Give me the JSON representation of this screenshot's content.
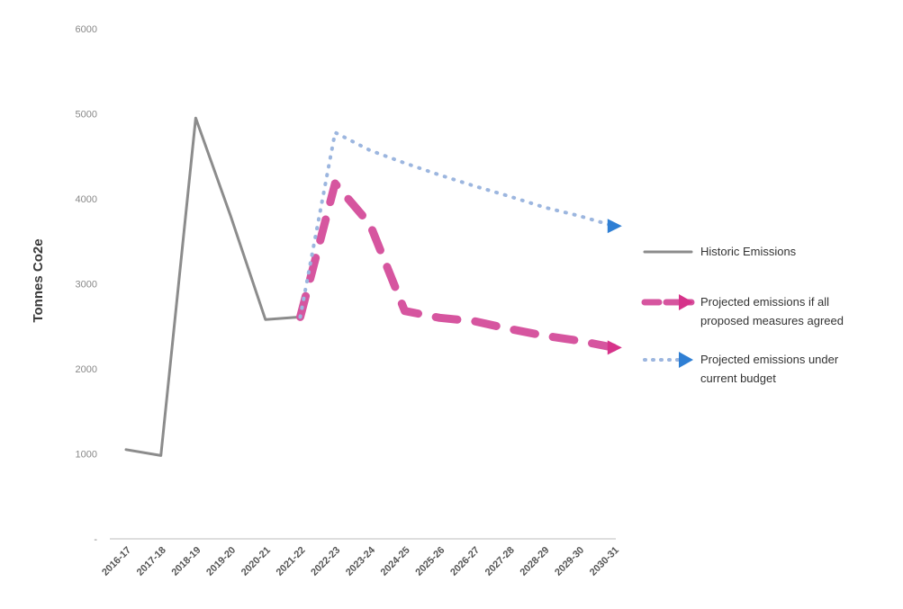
{
  "chart_data": {
    "type": "line",
    "ylabel": "Tonnes  Co2e",
    "xlabel": "",
    "title": "",
    "ylim": [
      0,
      6000
    ],
    "y_ticks": [
      {
        "value": 6000,
        "label": "6000"
      },
      {
        "value": 5000,
        "label": "5000"
      },
      {
        "value": 4000,
        "label": "4000"
      },
      {
        "value": 3000,
        "label": "3000"
      },
      {
        "value": 2000,
        "label": "2000"
      },
      {
        "value": 1000,
        "label": "1000"
      },
      {
        "value": 0,
        "label": "-"
      }
    ],
    "categories": [
      "2016-17",
      "2017-18",
      "2018-19",
      "2019-20",
      "2020-21",
      "2021-22",
      "2022-23",
      "2023-24",
      "2024-25",
      "2025-26",
      "2026-27",
      "2027-28",
      "2028-29",
      "2029-30",
      "2030-31"
    ],
    "grid": false,
    "legend_position": "right",
    "series": [
      {
        "name": "Historic Emissions",
        "style": "solid",
        "color": "#8c8c8c",
        "values": [
          1050,
          980,
          4950,
          3800,
          2580,
          2610,
          null,
          null,
          null,
          null,
          null,
          null,
          null,
          null,
          null
        ]
      },
      {
        "name": "Projected emissions if all proposed measures agreed",
        "style": "dashed",
        "color": "#d6559f",
        "marker_color": "#d6338a",
        "values": [
          null,
          null,
          null,
          null,
          null,
          2610,
          4180,
          3700,
          2680,
          2600,
          2560,
          2470,
          2390,
          2330,
          2250
        ]
      },
      {
        "name": "Projected emissions under current budget",
        "style": "dotted",
        "color": "#9cb6df",
        "marker_color": "#2f7fd4",
        "values": [
          null,
          null,
          null,
          null,
          null,
          2610,
          4780,
          4570,
          4420,
          4280,
          4150,
          4030,
          3900,
          3800,
          3680
        ]
      }
    ]
  }
}
